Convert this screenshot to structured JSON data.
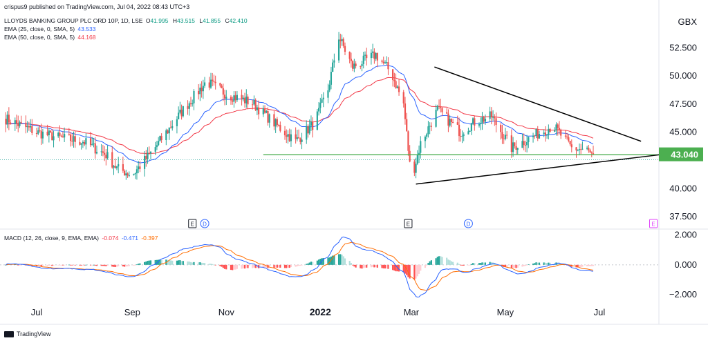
{
  "publisher": "crispus9 published on TradingView.com, Jul 04, 2022 08:43 UTC+3",
  "header": {
    "symbol": "LLOYDS BANKING GROUP PLC ORD 10P, 1D, LSE",
    "ohlc": [
      {
        "label": "O",
        "value": "41.995"
      },
      {
        "label": "H",
        "value": "43.515"
      },
      {
        "label": "L",
        "value": "41.855"
      },
      {
        "label": "C",
        "value": "42.410"
      }
    ],
    "ema25_label": "EMA (25, close, 0, SMA, 5)",
    "ema25_value": "43.533",
    "ema50_label": "EMA (50, close, 0, SMA, 5)",
    "ema50_value": "44.168"
  },
  "macd_header": {
    "label": "MACD (12, 26, close, 9, EMA, EMA)",
    "hist": "-0.074",
    "macd": "-0.471",
    "signal": "-0.397"
  },
  "currency": "GBX",
  "current_price": "43.040",
  "footer_brand": "TradingView",
  "colors": {
    "up": "#26a69a",
    "down": "#ef5350",
    "ema25": "#2962ff",
    "ema50": "#f23645",
    "support": "#4caf50",
    "macd": "#2962ff",
    "signal": "#ff6d00",
    "trend": "#000000"
  },
  "chart_data": {
    "type": "candlestick",
    "price_axis": {
      "ticks": [
        37.5,
        40.0,
        42.5,
        45.0,
        47.5,
        50.0,
        52.5,
        55.0
      ],
      "tick_labels": [
        "37.500",
        "40.000",
        "",
        "45.000",
        "47.500",
        "50.000",
        "52.500",
        ""
      ],
      "range": [
        36.4,
        55.4
      ]
    },
    "time_axis": {
      "labels": [
        "Jul",
        "Sep",
        "Nov",
        "2022",
        "Mar",
        "May",
        "Jul"
      ],
      "label_days": [
        0,
        62,
        123,
        184,
        243,
        304,
        365
      ]
    },
    "price_path_days": [
      -20,
      0,
      15,
      30,
      45,
      52,
      62,
      75,
      95,
      110,
      123,
      140,
      155,
      168,
      180,
      189,
      196,
      205,
      220,
      230,
      238,
      243,
      249,
      260,
      275,
      285,
      295,
      308,
      320,
      335,
      347,
      357,
      363
    ],
    "price_path_values": [
      46.2,
      45.0,
      44.5,
      44.2,
      43.0,
      41.8,
      41.2,
      43.3,
      47.0,
      49.5,
      48.4,
      47.6,
      45.7,
      44.2,
      45.8,
      48.8,
      53.5,
      50.8,
      51.9,
      50.3,
      47.5,
      40.8,
      44.0,
      47.0,
      45.0,
      46.0,
      46.4,
      43.6,
      44.5,
      45.6,
      43.6,
      43.4,
      42.4
    ],
    "support_line": {
      "price": 43.0,
      "from_day": 147,
      "to_day": 400
    },
    "triangle_upper": {
      "from": [
        258,
        50.8
      ],
      "to": [
        392,
        44.2
      ]
    },
    "triangle_lower": {
      "from": [
        246,
        40.4
      ],
      "to": [
        410,
        43.1
      ]
    },
    "event_markers": [
      {
        "day": 101,
        "label": "E"
      },
      {
        "day": 109,
        "label": "D"
      },
      {
        "day": 241,
        "label": "E"
      },
      {
        "day": 280,
        "label": "D"
      },
      {
        "day": 400,
        "label": "E"
      }
    ],
    "macd": {
      "axis_ticks": [
        2.0,
        0.0,
        -2.0
      ],
      "axis_tick_labels": [
        "2.000",
        "0.000",
        "−2.000"
      ],
      "range": [
        -2.6,
        2.4
      ],
      "last": {
        "histogram": -0.074,
        "macd": -0.471,
        "signal": -0.397
      }
    }
  }
}
